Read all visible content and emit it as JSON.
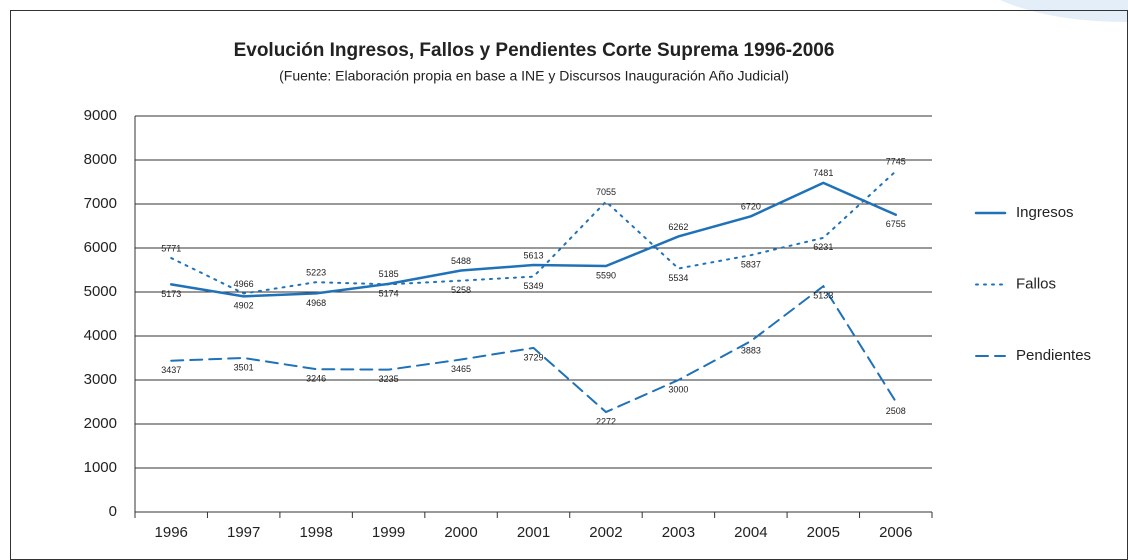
{
  "chart_data": {
    "type": "line",
    "title": "Evolución Ingresos, Fallos y Pendientes Corte Suprema 1996-2006",
    "subtitle": "(Fuente: Elaboración propia en base a INE y Discursos Inauguración Año Judicial)",
    "categories": [
      "1996",
      "1997",
      "1998",
      "1999",
      "2000",
      "2001",
      "2002",
      "2003",
      "2004",
      "2005",
      "2006"
    ],
    "series": [
      {
        "name": "Ingresos",
        "color": "#1f72b8",
        "dash": "solid",
        "values": [
          5173,
          4902,
          4968,
          5185,
          5488,
          5613,
          5590,
          6262,
          6720,
          7481,
          6755
        ]
      },
      {
        "name": "Fallos",
        "color": "#1f72b8",
        "dash": "dotted",
        "values": [
          5771,
          4966,
          5223,
          5174,
          5258,
          5349,
          7055,
          5534,
          5837,
          6231,
          7745
        ]
      },
      {
        "name": "Pendientes",
        "color": "#1f72b8",
        "dash": "dashed",
        "values": [
          3437,
          3501,
          3246,
          3235,
          3465,
          3729,
          2272,
          3000,
          3883,
          5133,
          2508
        ]
      }
    ],
    "ylim": [
      0,
      9000
    ],
    "yticks": [
      0,
      1000,
      2000,
      3000,
      4000,
      5000,
      6000,
      7000,
      8000,
      9000
    ],
    "grid": true,
    "legend": "right"
  }
}
